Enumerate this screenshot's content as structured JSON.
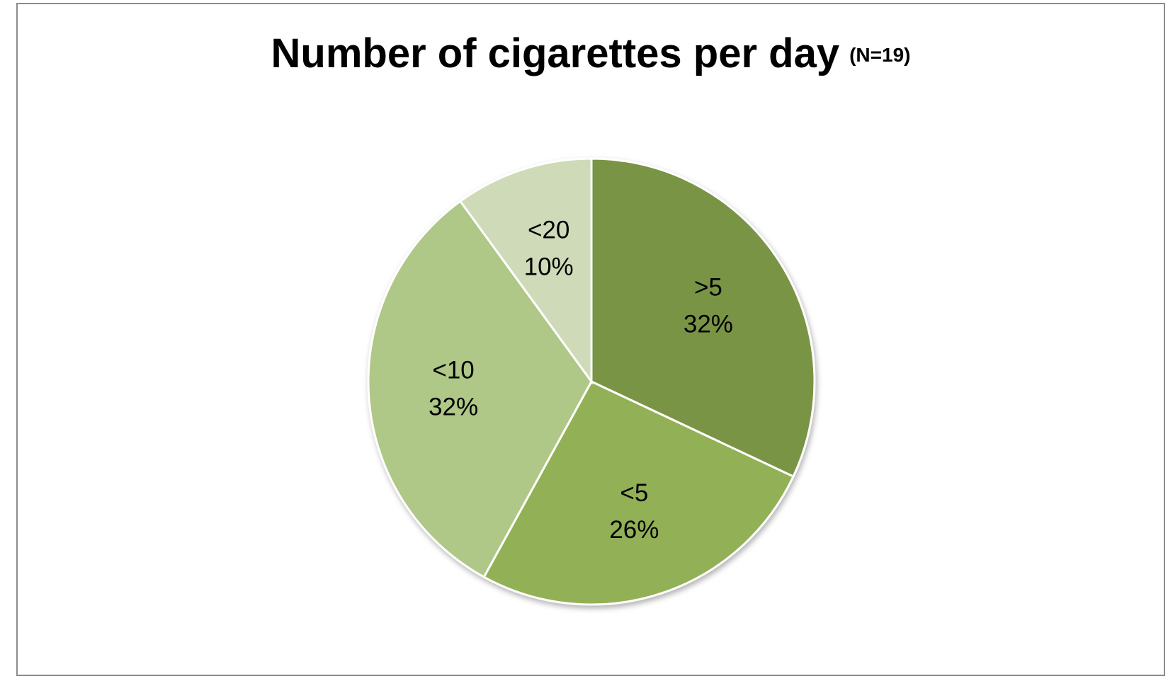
{
  "chart_data": {
    "type": "pie",
    "title": "Number of cigarettes per day",
    "subtitle": "(N=19)",
    "categories": [
      ">5",
      "<5",
      "<10",
      "<20"
    ],
    "values": [
      32,
      26,
      32,
      10
    ],
    "value_labels": [
      "32%",
      "26%",
      "32%",
      "10%"
    ],
    "colors": [
      "#7a9444",
      "#92b055",
      "#afc787",
      "#cfdbb8"
    ]
  }
}
